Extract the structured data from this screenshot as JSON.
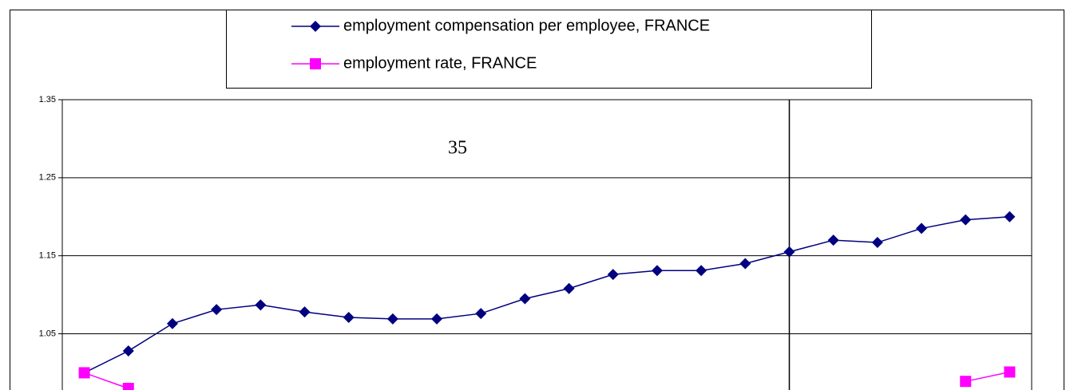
{
  "chart_data": {
    "type": "line",
    "annotation": "35",
    "categories": [
      null,
      null,
      null,
      null,
      null,
      null,
      null,
      null,
      null,
      null,
      null,
      null,
      null,
      null,
      null,
      null,
      null,
      null,
      null,
      null,
      null,
      null
    ],
    "series": [
      {
        "name": "employment compensation per employee, FRANCE",
        "color": "#000080",
        "marker": "diamond",
        "values": [
          1.0,
          1.028,
          1.063,
          1.081,
          1.087,
          1.078,
          1.071,
          1.069,
          1.069,
          1.076,
          1.095,
          1.108,
          1.126,
          1.131,
          1.131,
          1.14,
          1.155,
          1.17,
          1.167,
          1.185,
          1.196,
          1.2
        ]
      },
      {
        "name": "employment rate, FRANCE",
        "color": "#ff00ff",
        "marker": "square",
        "values": [
          1.0,
          0.98,
          null,
          null,
          null,
          null,
          null,
          null,
          null,
          null,
          null,
          null,
          null,
          null,
          null,
          null,
          null,
          null,
          null,
          null,
          0.989,
          1.001
        ]
      }
    ],
    "ylim": [
      0.98,
      1.35
    ],
    "yticks": [
      1.05,
      1.15,
      1.25,
      1.35
    ],
    "grid": true,
    "vline_category_index": 16,
    "legend": "top"
  }
}
